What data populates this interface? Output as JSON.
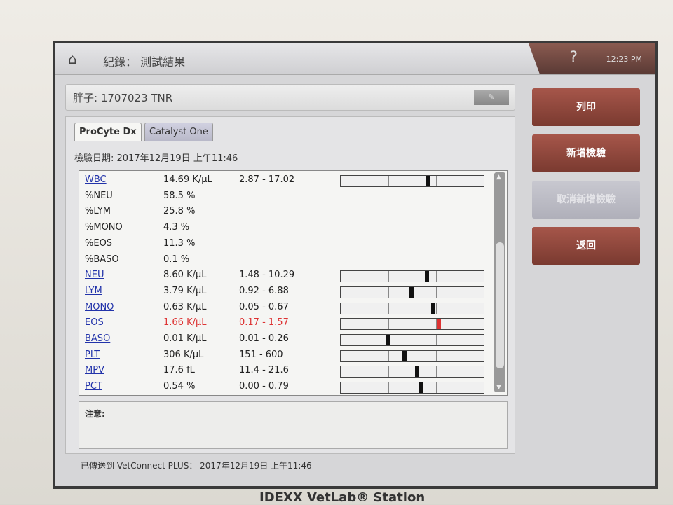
{
  "header": {
    "home_icon": "home-icon",
    "title": "紀錄： 測試結果",
    "help": "?",
    "time": "12:23 PM"
  },
  "patient": {
    "label": "胖子: 1707023 TNR",
    "edit_icon": "edit-icon"
  },
  "tabs": [
    {
      "label": "ProCyte Dx",
      "active": true
    },
    {
      "label": "Catalyst One",
      "active": false
    }
  ],
  "test_date": "檢驗日期: 2017年12月19日 上午11:46",
  "results": [
    {
      "name": "WBC",
      "value": "14.69 K/µL",
      "range": "2.87 - 17.02",
      "lo": 2.87,
      "hi": 17.02,
      "v": 14.69,
      "link": true
    },
    {
      "name": "%NEU",
      "value": "58.5 %",
      "range": "",
      "link": false
    },
    {
      "name": "%LYM",
      "value": "25.8 %",
      "range": "",
      "link": false
    },
    {
      "name": "%MONO",
      "value": "4.3 %",
      "range": "",
      "link": false
    },
    {
      "name": "%EOS",
      "value": "11.3 %",
      "range": "",
      "link": false
    },
    {
      "name": "%BASO",
      "value": "0.1 %",
      "range": "",
      "link": false
    },
    {
      "name": "NEU",
      "value": "8.60 K/µL",
      "range": "1.48 - 10.29",
      "lo": 1.48,
      "hi": 10.29,
      "v": 8.6,
      "link": true
    },
    {
      "name": "LYM",
      "value": "3.79 K/µL",
      "range": "0.92 - 6.88",
      "lo": 0.92,
      "hi": 6.88,
      "v": 3.79,
      "link": true
    },
    {
      "name": "MONO",
      "value": "0.63 K/µL",
      "range": "0.05 - 0.67",
      "lo": 0.05,
      "hi": 0.67,
      "v": 0.63,
      "link": true
    },
    {
      "name": "EOS",
      "value": "1.66 K/µL",
      "range": "0.17 - 1.57",
      "lo": 0.17,
      "hi": 1.57,
      "v": 1.66,
      "link": true,
      "high": true
    },
    {
      "name": "BASO",
      "value": "0.01 K/µL",
      "range": "0.01 - 0.26",
      "lo": 0.01,
      "hi": 0.26,
      "v": 0.01,
      "link": true
    },
    {
      "name": "PLT",
      "value": "306 K/µL",
      "range": "151 - 600",
      "lo": 151,
      "hi": 600,
      "v": 306,
      "link": true
    },
    {
      "name": "MPV",
      "value": "17.6 fL",
      "range": "11.4 - 21.6",
      "lo": 11.4,
      "hi": 21.6,
      "v": 17.6,
      "link": true
    },
    {
      "name": "PCT",
      "value": "0.54 %",
      "range": "0.00 - 0.79",
      "lo": 0,
      "hi": 0.79,
      "v": 0.54,
      "link": true
    }
  ],
  "notes_label": "注意:",
  "sent": "已傳送到 VetConnect PLUS： 2017年12月19日 上午11:46",
  "side_buttons": [
    {
      "label": "列印",
      "enabled": true
    },
    {
      "label": "新增檢驗",
      "enabled": true
    },
    {
      "label": "取消新增檢驗",
      "enabled": false
    },
    {
      "label": "返回",
      "enabled": true
    }
  ],
  "brand": "IDEXX VetLab® Station",
  "colors": {
    "high": "#dd3333",
    "button": "#8f4a3f",
    "link": "#2233aa"
  }
}
